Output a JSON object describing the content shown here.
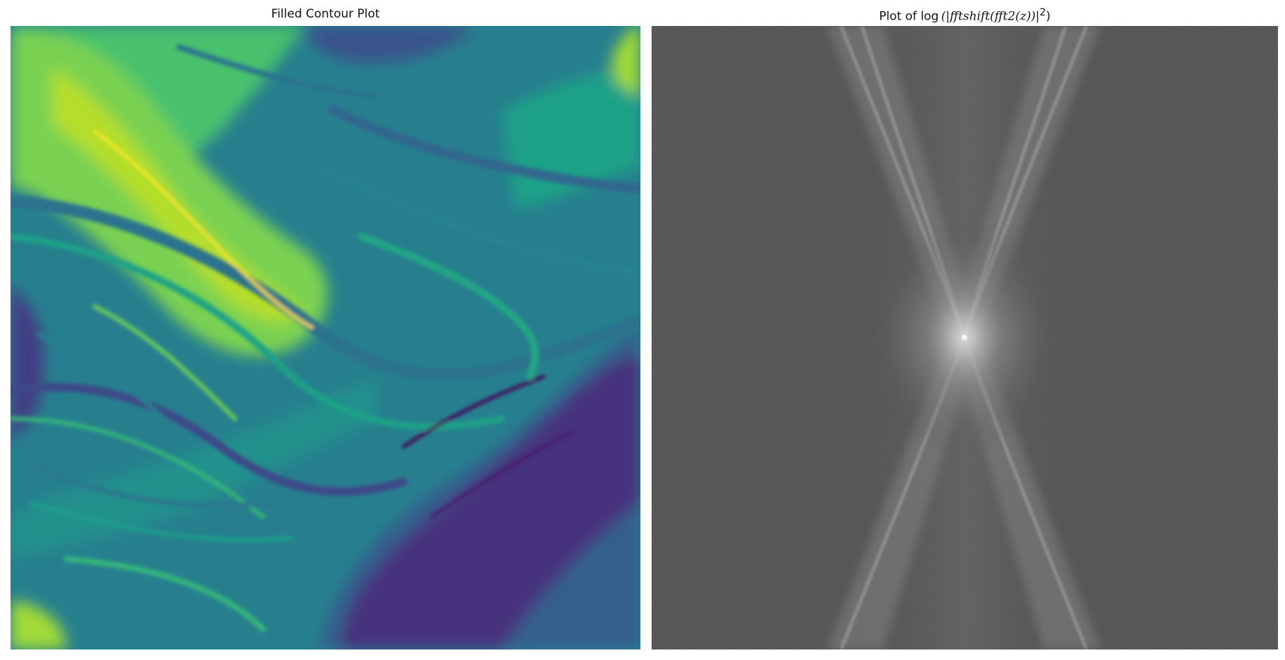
{
  "figure": {
    "panels": [
      {
        "title": "Filled Contour Plot",
        "kind": "filled-contour",
        "colormap": "viridis",
        "axes_visible": false
      },
      {
        "title_prefix": "Plot of log",
        "title_math": "(|fftshift(fft2(z))|",
        "title_exponent": "2",
        "title_close": ")",
        "kind": "image",
        "colormap": "gray",
        "axes_visible": false
      }
    ]
  },
  "chart_data": [
    {
      "type": "heatmap",
      "title": "Filled Contour Plot",
      "xlabel": "",
      "ylabel": "",
      "colormap": "viridis",
      "grid": false,
      "legend": "none"
    },
    {
      "type": "heatmap",
      "title": "Plot of log(|fftshift(fft2(z))|^2)",
      "xlabel": "",
      "ylabel": "",
      "colormap": "gray",
      "grid": false,
      "legend": "none"
    }
  ],
  "colors": {
    "viridis": [
      "#440154",
      "#46327e",
      "#365c8d",
      "#277f8e",
      "#1fa187",
      "#4ac16d",
      "#a0da39",
      "#fde725"
    ],
    "spectrum_background": "#4a4a4a",
    "spectrum_highlight": "#e8e8e8"
  }
}
